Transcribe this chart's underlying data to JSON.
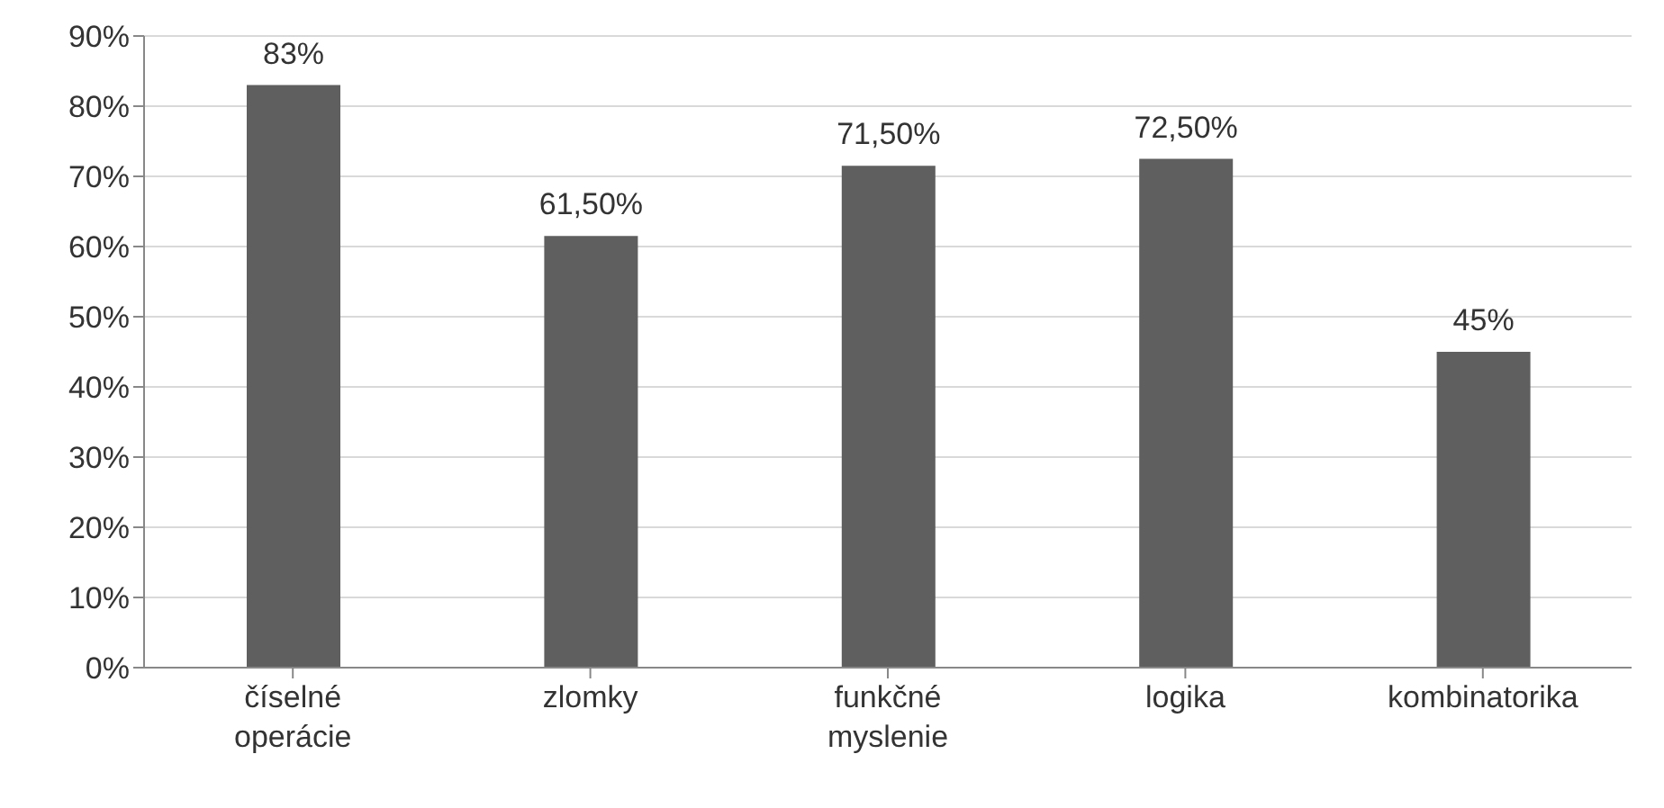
{
  "chart_data": {
    "type": "bar",
    "categories": [
      "číselné operácie",
      "zlomky",
      "funkčné myslenie",
      "logika",
      "kombinatorika"
    ],
    "values": [
      83,
      61.5,
      71.5,
      72.5,
      45
    ],
    "value_labels": [
      "83%",
      "61,50%",
      "71,50%",
      "72,50%",
      "45%"
    ],
    "color": "#5f5f5f",
    "ylim": [
      0,
      90
    ],
    "yticks": [
      {
        "value": 0,
        "label": "0%"
      },
      {
        "value": 10,
        "label": "10%"
      },
      {
        "value": 20,
        "label": "20%"
      },
      {
        "value": 30,
        "label": "30%"
      },
      {
        "value": 40,
        "label": "40%"
      },
      {
        "value": 50,
        "label": "50%"
      },
      {
        "value": 60,
        "label": "60%"
      },
      {
        "value": 70,
        "label": "70%"
      },
      {
        "value": 80,
        "label": "80%"
      },
      {
        "value": 90,
        "label": "90%"
      }
    ],
    "grid": "y"
  }
}
